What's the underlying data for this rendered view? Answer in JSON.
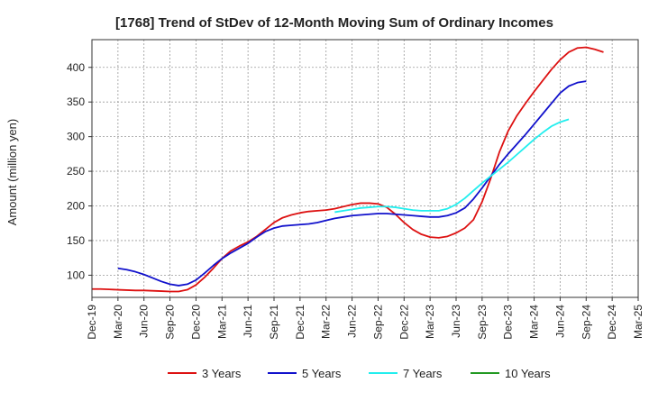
{
  "chart_data": {
    "type": "line",
    "title": "[1768]  Trend of StDev of 12-Month Moving Sum of Ordinary Incomes",
    "xlabel": "",
    "ylabel": "Amount (million yen)",
    "ylim": [
      68,
      440
    ],
    "yticks": [
      100,
      150,
      200,
      250,
      300,
      350,
      400
    ],
    "grid": true,
    "legend_position": "bottom",
    "x_tick_labels": [
      "Dec-19",
      "Mar-20",
      "Jun-20",
      "Sep-20",
      "Dec-20",
      "Mar-21",
      "Jun-21",
      "Sep-21",
      "Dec-21",
      "Mar-22",
      "Jun-22",
      "Sep-22",
      "Dec-22",
      "Mar-23",
      "Jun-23",
      "Sep-23",
      "Dec-23",
      "Mar-24",
      "Jun-24",
      "Sep-24",
      "Dec-24",
      "Mar-25"
    ],
    "x_months": [
      "Dec-19",
      "Jan-20",
      "Feb-20",
      "Mar-20",
      "Apr-20",
      "May-20",
      "Jun-20",
      "Jul-20",
      "Aug-20",
      "Sep-20",
      "Oct-20",
      "Nov-20",
      "Dec-20",
      "Jan-21",
      "Feb-21",
      "Mar-21",
      "Apr-21",
      "May-21",
      "Jun-21",
      "Jul-21",
      "Aug-21",
      "Sep-21",
      "Oct-21",
      "Nov-21",
      "Dec-21",
      "Jan-22",
      "Feb-22",
      "Mar-22",
      "Apr-22",
      "May-22",
      "Jun-22",
      "Jul-22",
      "Aug-22",
      "Sep-22",
      "Oct-22",
      "Nov-22",
      "Dec-22",
      "Jan-23",
      "Feb-23",
      "Mar-23",
      "Apr-23",
      "May-23",
      "Jun-23",
      "Jul-23",
      "Aug-23",
      "Sep-23",
      "Oct-23",
      "Nov-23",
      "Dec-23",
      "Jan-24",
      "Feb-24",
      "Mar-24",
      "Apr-24",
      "May-24",
      "Jun-24",
      "Jul-24",
      "Aug-24",
      "Sep-24",
      "Oct-24",
      "Nov-24",
      "Dec-24",
      "Jan-25",
      "Feb-25",
      "Mar-25"
    ],
    "series": [
      {
        "name": "3 Years",
        "color": "#dd1111",
        "values": [
          80,
          80,
          79.5,
          79,
          78.5,
          78,
          78,
          77.5,
          77,
          76.5,
          76.5,
          79,
          86,
          97,
          110,
          124,
          135,
          142,
          148,
          156,
          166,
          176,
          183,
          187,
          190,
          192,
          193,
          194,
          196,
          199,
          202,
          204,
          204,
          203,
          198,
          188,
          176,
          166,
          159,
          155,
          154,
          156,
          161,
          168,
          180,
          206,
          240,
          278,
          308,
          330,
          348,
          365,
          381,
          397,
          411,
          422,
          428,
          429,
          426,
          422,
          null,
          null,
          null,
          null
        ]
      },
      {
        "name": "5 Years",
        "color": "#1111cc",
        "values": [
          null,
          null,
          null,
          110,
          108,
          105,
          101,
          96,
          91,
          87,
          85,
          87,
          93,
          103,
          114,
          124,
          132,
          139,
          146,
          155,
          163,
          168,
          171,
          172,
          173,
          174,
          176,
          179,
          182,
          184,
          186,
          187,
          188,
          189,
          189,
          188,
          187,
          186,
          185,
          184,
          184,
          186,
          190,
          197,
          210,
          226,
          243,
          260,
          275,
          289,
          303,
          318,
          333,
          348,
          363,
          373,
          378,
          380,
          null,
          null,
          null,
          null,
          null,
          null
        ]
      },
      {
        "name": "7 Years",
        "color": "#22eeee",
        "values": [
          null,
          null,
          null,
          null,
          null,
          null,
          null,
          null,
          null,
          null,
          null,
          null,
          null,
          null,
          null,
          null,
          null,
          null,
          null,
          null,
          null,
          null,
          null,
          null,
          null,
          null,
          null,
          null,
          191,
          193,
          195,
          197,
          198,
          199,
          199,
          198,
          196,
          194,
          193,
          193,
          193,
          196,
          202,
          211,
          222,
          233,
          243,
          253,
          263,
          274,
          285,
          296,
          306,
          315,
          321,
          325,
          null,
          null,
          null,
          null,
          null,
          null,
          null,
          null
        ]
      },
      {
        "name": "10 Years",
        "color": "#229922",
        "values": []
      }
    ]
  }
}
